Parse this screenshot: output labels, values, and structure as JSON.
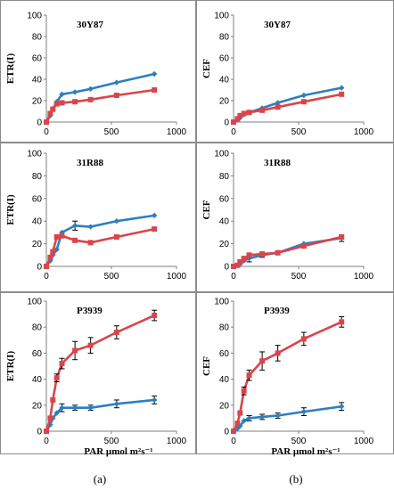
{
  "figure_labels": [
    "(a)",
    "(b)"
  ],
  "colors": {
    "series_1": "#2e7fc0",
    "series_2": "#d9454a",
    "error_bar": "#000000"
  },
  "chart_data": [
    {
      "id": "p0",
      "type": "line",
      "title": "30Y87",
      "ylabel": "ETR(I)",
      "xlabel": "",
      "xlim": [
        0,
        1000
      ],
      "ylim": [
        0,
        100
      ],
      "xticks": [
        0,
        500,
        1000
      ],
      "yticks": [
        0,
        20,
        40,
        60,
        80,
        100
      ],
      "x": [
        0,
        30,
        50,
        80,
        120,
        220,
        340,
        540,
        830
      ],
      "series": [
        {
          "values": [
            0,
            6,
            12,
            19,
            26,
            28,
            31,
            37,
            45
          ],
          "errors": [
            0,
            0,
            0,
            0,
            0,
            0,
            0,
            0,
            0
          ]
        },
        {
          "values": [
            0,
            8,
            12,
            17,
            18,
            19,
            21,
            25,
            30
          ],
          "errors": [
            0,
            0,
            0,
            0,
            0,
            0,
            0,
            0,
            0
          ]
        }
      ]
    },
    {
      "id": "p1",
      "type": "line",
      "title": "30Y87",
      "ylabel": "CEF",
      "xlabel": "",
      "xlim": [
        0,
        1000
      ],
      "ylim": [
        0,
        100
      ],
      "xticks": [
        0,
        500,
        1000
      ],
      "yticks": [
        0,
        20,
        40,
        60,
        80,
        100
      ],
      "x": [
        0,
        30,
        50,
        80,
        120,
        220,
        340,
        540,
        830
      ],
      "series": [
        {
          "values": [
            0,
            2,
            4,
            7,
            9,
            13,
            18,
            25,
            32
          ],
          "errors": [
            0,
            0,
            0,
            0,
            0,
            0,
            0,
            0,
            0
          ]
        },
        {
          "values": [
            0,
            3,
            6,
            8,
            9,
            11,
            14,
            19,
            26
          ],
          "errors": [
            0,
            0,
            0,
            0,
            0,
            0,
            0,
            0,
            0
          ]
        }
      ]
    },
    {
      "id": "p2",
      "type": "line",
      "title": "31R88",
      "ylabel": "ETR(I)",
      "xlabel": "",
      "xlim": [
        0,
        1000
      ],
      "ylim": [
        0,
        100
      ],
      "xticks": [
        0,
        500,
        1000
      ],
      "yticks": [
        0,
        20,
        40,
        60,
        80,
        100
      ],
      "x": [
        0,
        30,
        50,
        80,
        120,
        220,
        340,
        540,
        830
      ],
      "series": [
        {
          "values": [
            0,
            5,
            10,
            15,
            30,
            36,
            35,
            40,
            45
          ],
          "errors": [
            0,
            0,
            0,
            0,
            0,
            4,
            0,
            0,
            0
          ]
        },
        {
          "values": [
            0,
            8,
            13,
            26,
            27,
            23,
            21,
            26,
            33
          ],
          "errors": [
            0,
            0,
            0,
            0,
            0,
            0,
            0,
            0,
            0
          ]
        }
      ]
    },
    {
      "id": "p3",
      "type": "line",
      "title": "31R88",
      "ylabel": "CEF",
      "xlabel": "",
      "xlim": [
        0,
        1000
      ],
      "ylim": [
        0,
        100
      ],
      "xticks": [
        0,
        500,
        1000
      ],
      "yticks": [
        0,
        20,
        40,
        60,
        80,
        100
      ],
      "x": [
        0,
        30,
        50,
        80,
        120,
        220,
        340,
        540,
        830
      ],
      "series": [
        {
          "values": [
            0,
            1,
            2,
            5,
            7,
            10,
            12,
            20,
            25
          ],
          "errors": [
            0,
            0,
            0,
            0,
            3,
            2,
            0,
            0,
            3
          ]
        },
        {
          "values": [
            0,
            1,
            4,
            7,
            10,
            11,
            12,
            18,
            26
          ],
          "errors": [
            0,
            0,
            0,
            0,
            0,
            0,
            0,
            0,
            0
          ]
        }
      ]
    },
    {
      "id": "p4",
      "type": "line",
      "title": "P3939",
      "ylabel": "ETR(I)",
      "xlabel": "PAR µmol m²s⁻¹",
      "xlim": [
        0,
        1000
      ],
      "ylim": [
        0,
        100
      ],
      "xticks": [
        0,
        500,
        1000
      ],
      "yticks": [
        0,
        20,
        40,
        60,
        80,
        100
      ],
      "x": [
        0,
        30,
        50,
        80,
        120,
        220,
        340,
        540,
        830
      ],
      "series": [
        {
          "values": [
            0,
            5,
            10,
            14,
            18,
            18,
            18,
            21,
            24
          ],
          "errors": [
            0,
            0,
            0,
            0,
            3,
            2,
            2,
            3,
            3
          ]
        },
        {
          "values": [
            0,
            10,
            24,
            41,
            52,
            62,
            66,
            76,
            89
          ],
          "errors": [
            0,
            0,
            0,
            3,
            4,
            7,
            6,
            5,
            4
          ]
        }
      ]
    },
    {
      "id": "p5",
      "type": "line",
      "title": "P3939",
      "ylabel": "CEF",
      "xlabel": "PAR µmol m²s⁻¹",
      "xlim": [
        0,
        1000
      ],
      "ylim": [
        0,
        100
      ],
      "xticks": [
        0,
        500,
        1000
      ],
      "yticks": [
        0,
        20,
        40,
        60,
        80,
        100
      ],
      "x": [
        0,
        30,
        50,
        80,
        120,
        220,
        340,
        540,
        830
      ],
      "series": [
        {
          "values": [
            0,
            2,
            4,
            8,
            10,
            11,
            12,
            15,
            19
          ],
          "errors": [
            0,
            0,
            0,
            0,
            2,
            2,
            2,
            3,
            3
          ]
        },
        {
          "values": [
            0,
            6,
            14,
            31,
            43,
            54,
            60,
            71,
            84
          ],
          "errors": [
            0,
            0,
            0,
            3,
            4,
            7,
            6,
            5,
            4
          ]
        }
      ]
    }
  ]
}
